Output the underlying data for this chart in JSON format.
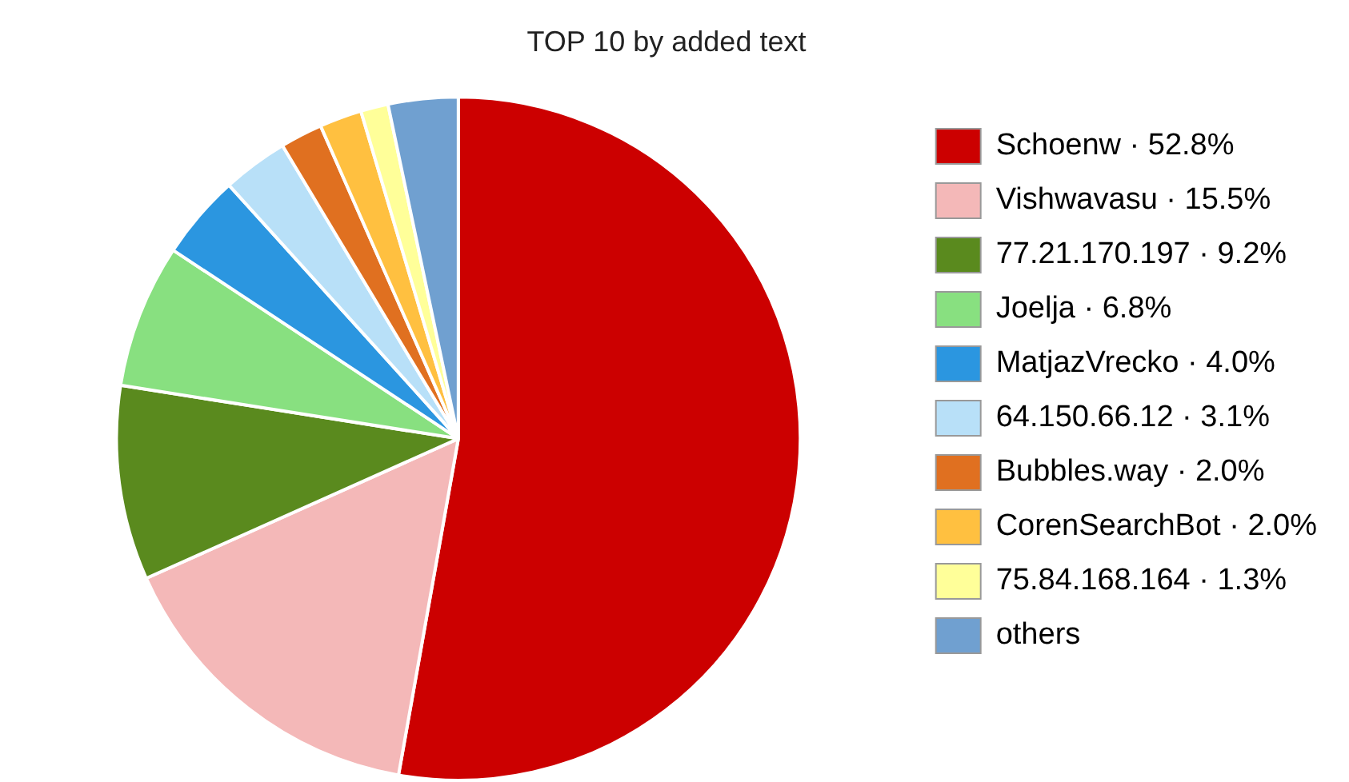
{
  "chart_data": {
    "type": "pie",
    "title": "TOP 10 by added text",
    "categories": [
      "Schoenw · 52.8%",
      "Vishwavasu · 15.5%",
      "77.21.170.197 · 9.2%",
      "Joelja · 6.8%",
      "MatjazVrecko · 4.0%",
      "64.150.66.12 · 3.1%",
      "Bubbles.way · 2.0%",
      "CorenSearchBot · 2.0%",
      "75.84.168.164 · 1.3%",
      "others"
    ],
    "values": [
      52.8,
      15.5,
      9.2,
      6.8,
      4.0,
      3.1,
      2.0,
      2.0,
      1.3,
      3.3
    ],
    "colors": [
      "#cc0000",
      "#f4b8b8",
      "#5a8a1e",
      "#88e080",
      "#2b96e0",
      "#b8e0f8",
      "#e07020",
      "#ffc040",
      "#ffff99",
      "#70a0d0"
    ],
    "legend": "right"
  }
}
